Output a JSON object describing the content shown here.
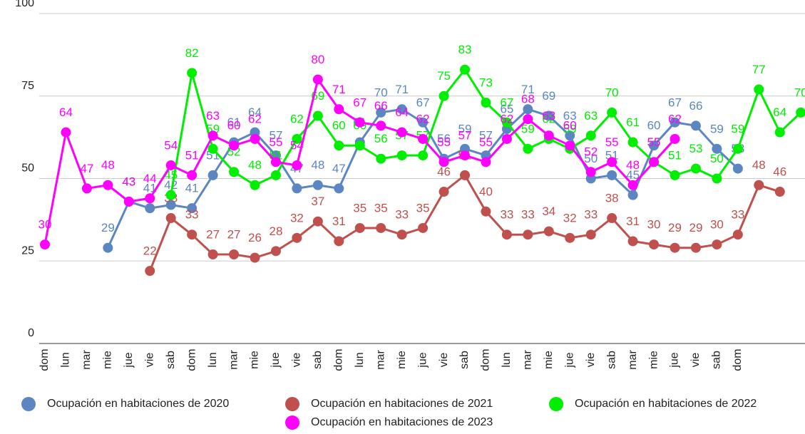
{
  "chart_data": {
    "type": "line",
    "categories": [
      "dom",
      "lun",
      "mar",
      "mie",
      "jue",
      "vie",
      "sab",
      "dom",
      "lun",
      "mar",
      "mie",
      "jue",
      "vie",
      "sab",
      "dom",
      "lun",
      "mar",
      "mie",
      "jue",
      "vie",
      "sab",
      "dom",
      "lun",
      "mar",
      "mie",
      "jue",
      "vie",
      "sab",
      "mar",
      "mie",
      "jue",
      "vie",
      "sab",
      "dom",
      null,
      null,
      null
    ],
    "series": [
      {
        "name": "Ocupación en habitaciones de 2020",
        "color": "#5b86c2",
        "values": [
          null,
          null,
          null,
          29,
          43,
          41,
          42,
          41,
          51,
          61,
          64,
          57,
          47,
          48,
          47,
          61,
          70,
          71,
          67,
          56,
          59,
          57,
          65,
          71,
          69,
          63,
          50,
          51,
          45,
          60,
          67,
          66,
          59,
          53,
          null,
          null,
          null
        ]
      },
      {
        "name": "Ocupación en habitaciones de 2021",
        "color": "#c0504d",
        "values": [
          null,
          null,
          null,
          null,
          null,
          22,
          38,
          33,
          27,
          27,
          26,
          28,
          32,
          37,
          31,
          35,
          35,
          33,
          35,
          46,
          51,
          40,
          33,
          33,
          34,
          32,
          33,
          38,
          31,
          30,
          29,
          29,
          30,
          33,
          48,
          46,
          null
        ]
      },
      {
        "name": "Ocupación en habitaciones de 2022",
        "color": "#00ee00",
        "values": [
          null,
          null,
          null,
          null,
          null,
          null,
          45,
          82,
          59,
          52,
          48,
          51,
          62,
          69,
          60,
          60,
          56,
          57,
          57,
          75,
          83,
          73,
          67,
          59,
          62,
          59,
          63,
          70,
          61,
          55,
          51,
          53,
          50,
          59,
          77,
          64,
          70
        ]
      },
      {
        "name": "Ocupación en habitaciones de 2023",
        "color": "#ff00ff",
        "values": [
          30,
          64,
          47,
          48,
          43,
          44,
          54,
          51,
          63,
          60,
          62,
          55,
          54,
          80,
          71,
          67,
          66,
          64,
          62,
          55,
          57,
          55,
          62,
          68,
          63,
          60,
          52,
          55,
          48,
          55,
          62,
          null,
          null,
          null,
          null,
          null,
          null
        ]
      }
    ],
    "ylim": [
      0,
      100
    ],
    "yticks": [
      0,
      25,
      50,
      75,
      100
    ],
    "grid": true
  }
}
